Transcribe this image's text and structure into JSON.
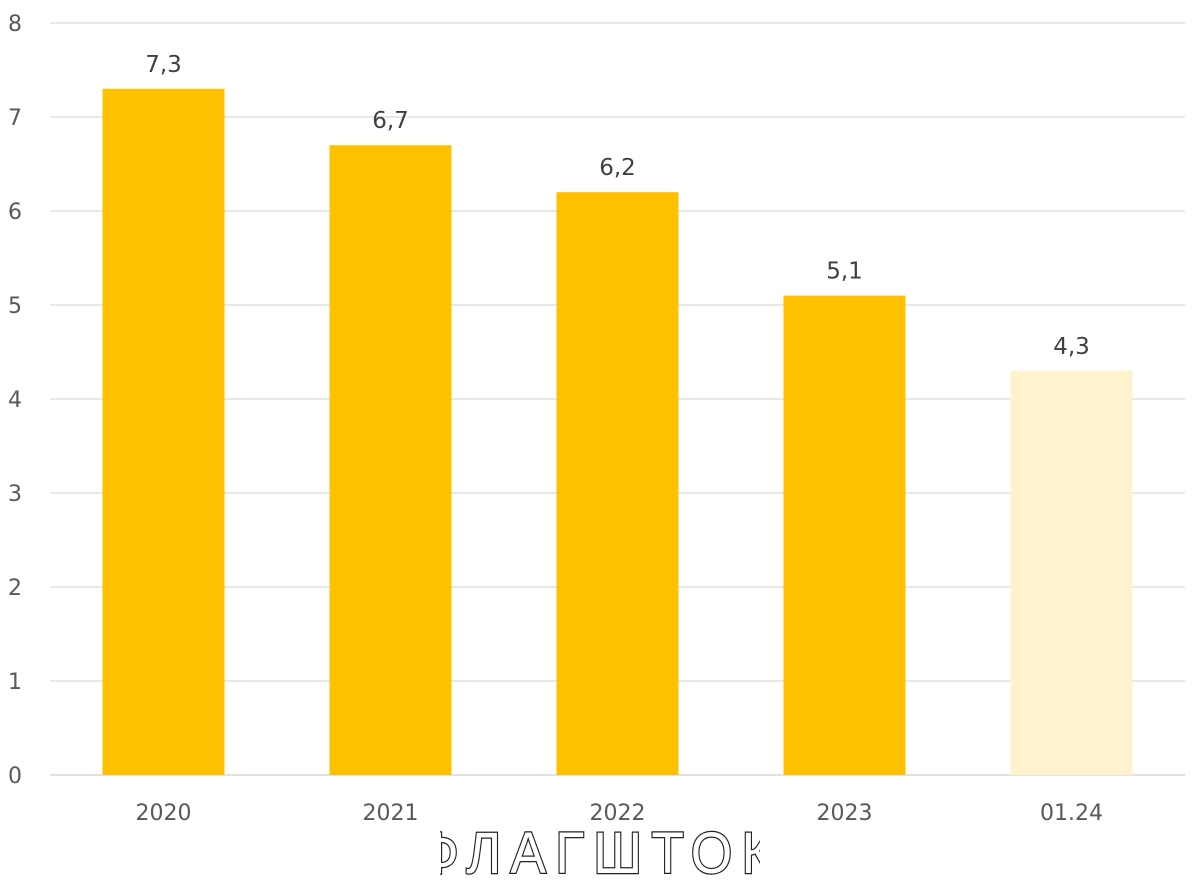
{
  "chart_data": {
    "type": "bar",
    "categories": [
      "2020",
      "2021",
      "2022",
      "2023",
      "01.24"
    ],
    "values": [
      7.3,
      6.7,
      6.2,
      5.1,
      4.3
    ],
    "data_labels": [
      "7,3",
      "6,7",
      "6,2",
      "5,1",
      "4,3"
    ],
    "title": "",
    "xlabel": "",
    "ylabel": "",
    "ylim": [
      0,
      8
    ],
    "yticks": [
      "0",
      "1",
      "2",
      "3",
      "4",
      "5",
      "6",
      "7",
      "8"
    ],
    "grid": true,
    "legend": "none",
    "colors": {
      "bar": "#FFC000",
      "bar_highlight": "#FFF2CC",
      "grid": "#D9D9D9",
      "tick_text": "#595959",
      "label_text": "#404040"
    },
    "bar_colors": [
      "#FFC000",
      "#FFC000",
      "#FFC000",
      "#FFC000",
      "#FFF2CC"
    ]
  },
  "watermark": {
    "text": "ФЛАГШТОК"
  }
}
